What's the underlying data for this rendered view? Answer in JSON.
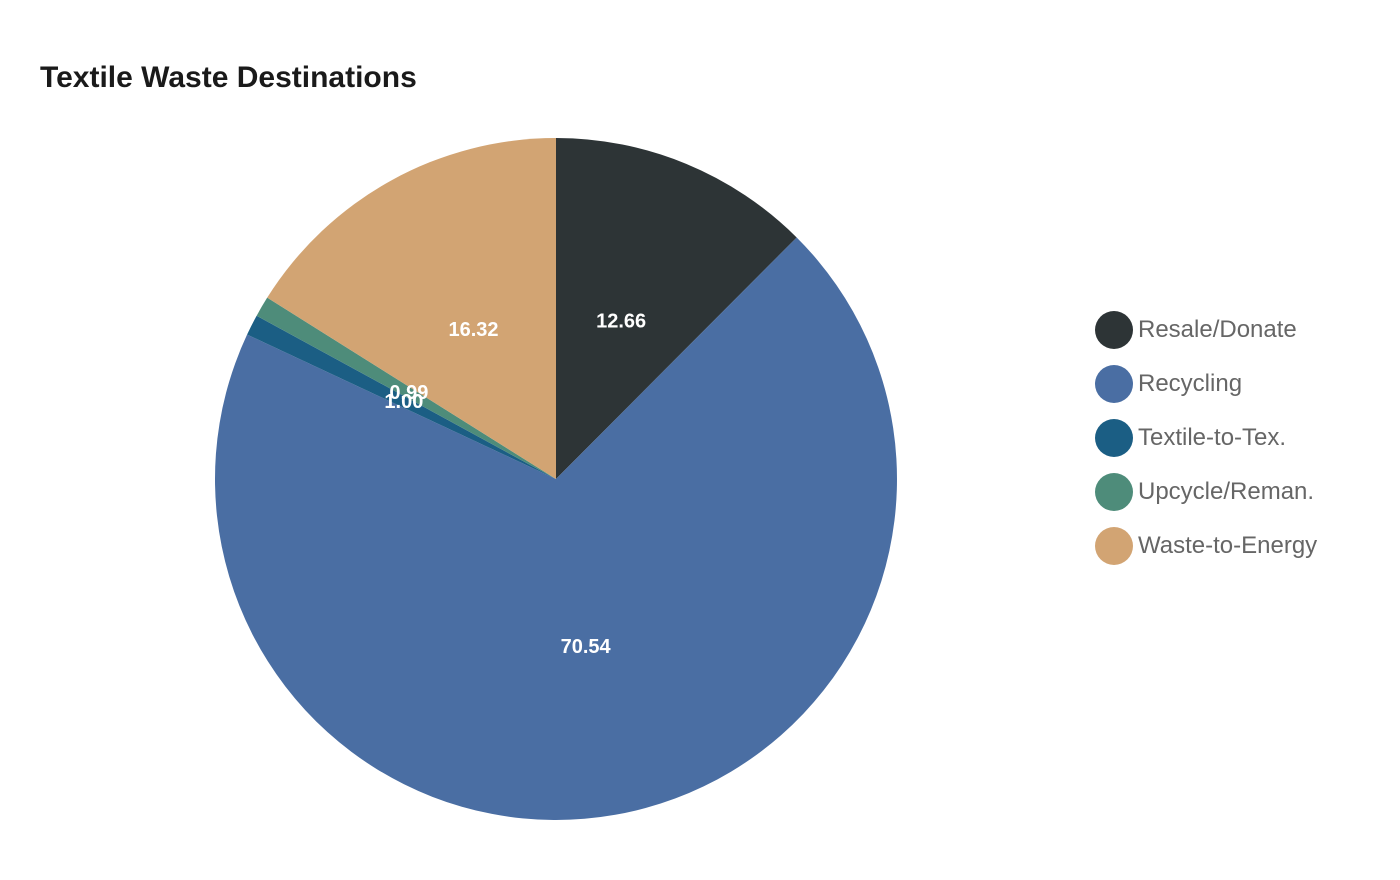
{
  "chart_data": {
    "type": "pie",
    "title": "Textile Waste Destinations",
    "legend_position": "right",
    "slices": [
      {
        "label": "Resale/Donate",
        "value": 12.66,
        "display": "12.66",
        "color": "#2d3436"
      },
      {
        "label": "Recycling",
        "value": 70.54,
        "display": "70.54",
        "color": "#4a6ea3"
      },
      {
        "label": "Textile-to-Tex.",
        "value": 1.0,
        "display": "1.00",
        "color": "#1b5e84"
      },
      {
        "label": "Upcycle/Reman.",
        "value": 0.99,
        "display": "0.99",
        "color": "#4e8c7a"
      },
      {
        "label": "Waste-to-Energy",
        "value": 16.32,
        "display": "16.32",
        "color": "#d2a473"
      }
    ]
  }
}
